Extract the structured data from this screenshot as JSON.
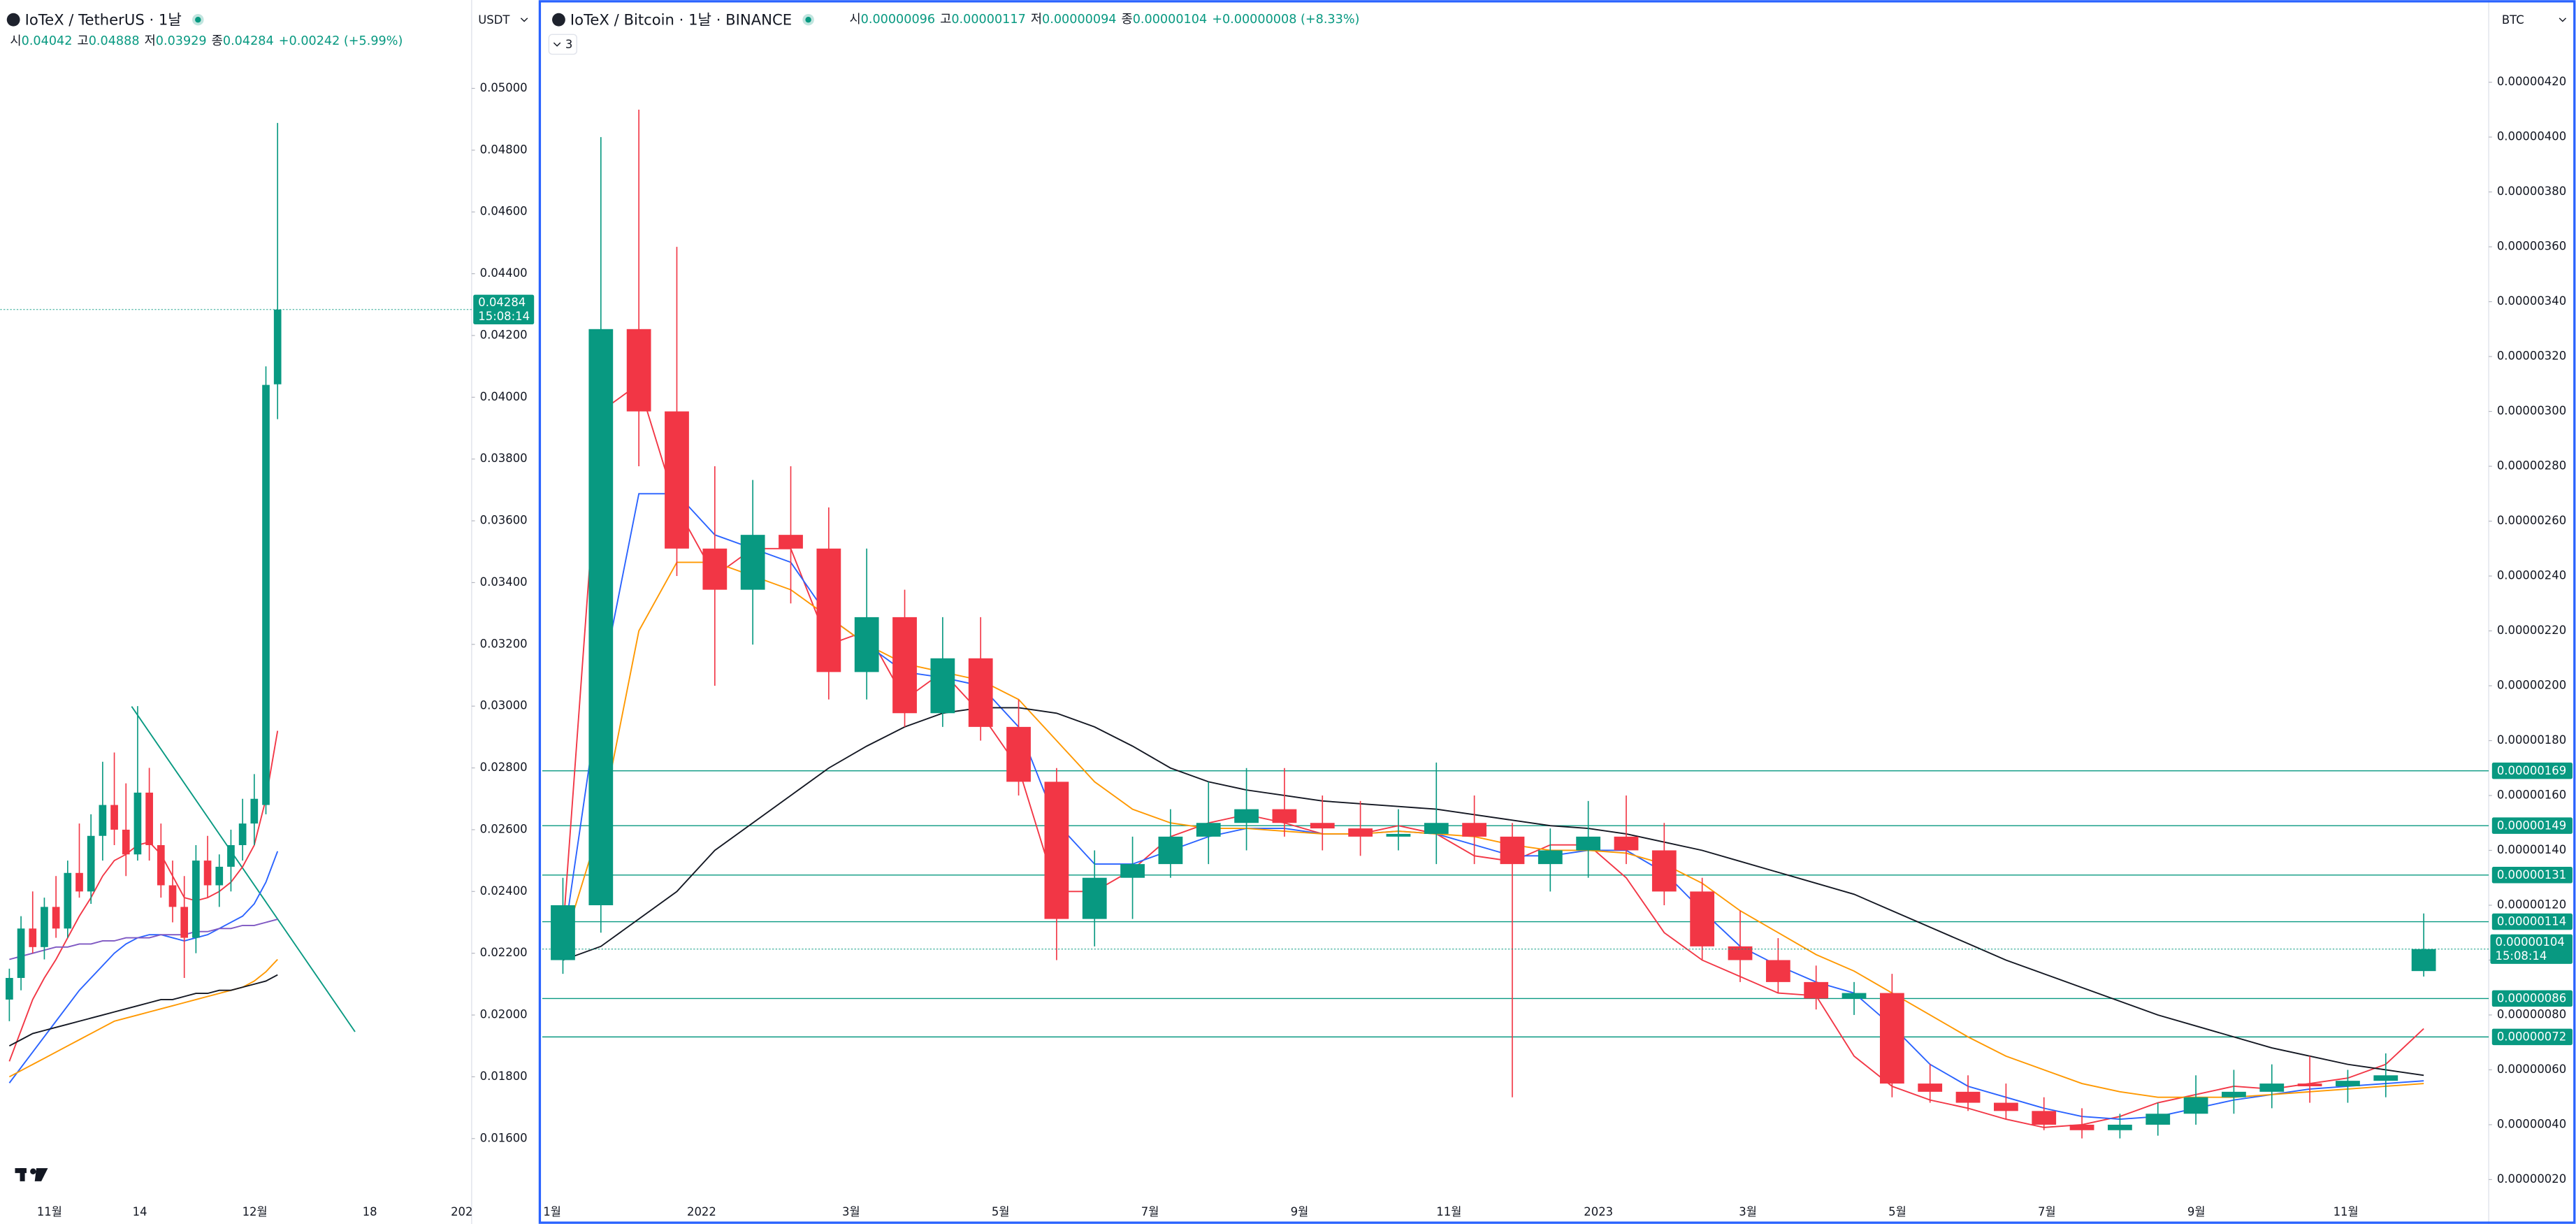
{
  "chart_data": [
    {
      "type": "candlestick",
      "title": "IoTeX / TetherUS · 1날",
      "currency": "USDT",
      "ohlc_header": [
        {
          "key": "시",
          "value": "0.04042"
        },
        {
          "key": "고",
          "value": "0.04888"
        },
        {
          "key": "저",
          "value": "0.03929"
        },
        {
          "key": "종",
          "value": "0.04284"
        }
      ],
      "change": "+0.00242 (+5.99%)",
      "ylim": [
        0.0135,
        0.051
      ],
      "yticks": [
        {
          "value": 0.05,
          "label": "0.05000"
        },
        {
          "value": 0.048,
          "label": "0.04800"
        },
        {
          "value": 0.046,
          "label": "0.04600"
        },
        {
          "value": 0.044,
          "label": "0.04400"
        },
        {
          "value": 0.042,
          "label": "0.04200"
        },
        {
          "value": 0.04,
          "label": "0.04000"
        },
        {
          "value": 0.038,
          "label": "0.03800"
        },
        {
          "value": 0.036,
          "label": "0.03600"
        },
        {
          "value": 0.034,
          "label": "0.03400"
        },
        {
          "value": 0.032,
          "label": "0.03200"
        },
        {
          "value": 0.03,
          "label": "0.03000"
        },
        {
          "value": 0.028,
          "label": "0.02800"
        },
        {
          "value": 0.026,
          "label": "0.02600"
        },
        {
          "value": 0.024,
          "label": "0.02400"
        },
        {
          "value": 0.022,
          "label": "0.02200"
        },
        {
          "value": 0.02,
          "label": "0.02000"
        },
        {
          "value": 0.018,
          "label": "0.01800"
        },
        {
          "value": 0.016,
          "label": "0.01600"
        }
      ],
      "xtick_labels": [
        "11월",
        "14",
        "12월",
        "18",
        "202"
      ],
      "up_color": "#089981",
      "down_color": "#f23645",
      "ohlc": [
        [
          0.0205,
          0.0215,
          0.0198,
          0.0212
        ],
        [
          0.0212,
          0.0232,
          0.0208,
          0.0228
        ],
        [
          0.0228,
          0.024,
          0.022,
          0.0222
        ],
        [
          0.0222,
          0.0238,
          0.0218,
          0.0235
        ],
        [
          0.0235,
          0.0245,
          0.0225,
          0.0228
        ],
        [
          0.0228,
          0.025,
          0.0225,
          0.0246
        ],
        [
          0.0246,
          0.0262,
          0.0238,
          0.024
        ],
        [
          0.024,
          0.0265,
          0.0236,
          0.0258
        ],
        [
          0.0258,
          0.0282,
          0.025,
          0.0268
        ],
        [
          0.0268,
          0.0285,
          0.0255,
          0.026
        ],
        [
          0.026,
          0.0275,
          0.0245,
          0.0252
        ],
        [
          0.0252,
          0.03,
          0.025,
          0.0272
        ],
        [
          0.0272,
          0.028,
          0.025,
          0.0255
        ],
        [
          0.0255,
          0.0262,
          0.0238,
          0.0242
        ],
        [
          0.0242,
          0.025,
          0.023,
          0.0235
        ],
        [
          0.0235,
          0.0245,
          0.0212,
          0.0225
        ],
        [
          0.0225,
          0.0255,
          0.022,
          0.025
        ],
        [
          0.025,
          0.0258,
          0.0238,
          0.0242
        ],
        [
          0.0242,
          0.0252,
          0.0235,
          0.0248
        ],
        [
          0.0248,
          0.026,
          0.024,
          0.0255
        ],
        [
          0.0255,
          0.027,
          0.025,
          0.0262
        ],
        [
          0.0262,
          0.0278,
          0.0255,
          0.027
        ],
        [
          0.0268,
          0.041,
          0.0265,
          0.0404
        ],
        [
          0.04042,
          0.04888,
          0.03929,
          0.04284
        ]
      ],
      "series": [
        {
          "color": "#f23645",
          "values": [
            0.0185,
            0.0195,
            0.0205,
            0.0212,
            0.0218,
            0.0225,
            0.0232,
            0.0238,
            0.0245,
            0.025,
            0.0252,
            0.0255,
            0.0256,
            0.0252,
            0.0245,
            0.0238,
            0.0237,
            0.0238,
            0.024,
            0.0243,
            0.0248,
            0.0255,
            0.027,
            0.0292
          ]
        },
        {
          "color": "#2962ff",
          "values": [
            0.0178,
            0.0183,
            0.0188,
            0.0193,
            0.0198,
            0.0203,
            0.0208,
            0.0212,
            0.0216,
            0.022,
            0.0223,
            0.0225,
            0.0226,
            0.0226,
            0.0225,
            0.0224,
            0.0225,
            0.0226,
            0.0228,
            0.023,
            0.0232,
            0.0236,
            0.0243,
            0.0253
          ]
        },
        {
          "color": "#7e57c2",
          "values": [
            0.0218,
            0.0219,
            0.022,
            0.0221,
            0.0222,
            0.0222,
            0.0223,
            0.0223,
            0.0224,
            0.0224,
            0.0225,
            0.0225,
            0.0225,
            0.0226,
            0.0226,
            0.0226,
            0.0227,
            0.0227,
            0.0228,
            0.0228,
            0.0229,
            0.0229,
            0.023,
            0.0231
          ]
        },
        {
          "color": "#ff9800",
          "values": [
            0.018,
            0.0182,
            0.0184,
            0.0186,
            0.0188,
            0.019,
            0.0192,
            0.0194,
            0.0196,
            0.0198,
            0.0199,
            0.02,
            0.0201,
            0.0202,
            0.0203,
            0.0204,
            0.0205,
            0.0206,
            0.0207,
            0.0208,
            0.0209,
            0.0211,
            0.0214,
            0.0218
          ]
        },
        {
          "color": "#131722",
          "values": [
            0.019,
            0.0192,
            0.0194,
            0.0195,
            0.0196,
            0.0197,
            0.0198,
            0.0199,
            0.02,
            0.0201,
            0.0202,
            0.0203,
            0.0204,
            0.0205,
            0.0205,
            0.0206,
            0.0207,
            0.0207,
            0.0208,
            0.0208,
            0.0209,
            0.021,
            0.0211,
            0.0213
          ]
        }
      ],
      "levels": [],
      "last_price": {
        "value": 0.04284,
        "label": "0.04284"
      },
      "countdown": "15:08:14"
    },
    {
      "type": "candlestick",
      "title": "IoTeX / Bitcoin · 1날 · BINANCE",
      "currency": "BTC",
      "indicators_count": "3",
      "ohlc_header": [
        {
          "key": "시",
          "value": "0.00000096"
        },
        {
          "key": "고",
          "value": "0.00000117"
        },
        {
          "key": "저",
          "value": "0.00000094"
        },
        {
          "key": "종",
          "value": "0.00000104"
        }
      ],
      "change": "+0.00000008 (+8.33%)",
      "ylim": [
        6.8e-08,
        4.29e-06
      ],
      "yticks": [
        {
          "value": 4.2e-06,
          "label": "0.00000420"
        },
        {
          "value": 4e-06,
          "label": "0.00000400"
        },
        {
          "value": 3.8e-06,
          "label": "0.00000380"
        },
        {
          "value": 3.6e-06,
          "label": "0.00000360"
        },
        {
          "value": 3.4e-06,
          "label": "0.00000340"
        },
        {
          "value": 3.2e-06,
          "label": "0.00000320"
        },
        {
          "value": 3e-06,
          "label": "0.00000300"
        },
        {
          "value": 2.8e-06,
          "label": "0.00000280"
        },
        {
          "value": 2.6e-06,
          "label": "0.00000260"
        },
        {
          "value": 2.4e-06,
          "label": "0.00000240"
        },
        {
          "value": 2.2e-06,
          "label": "0.00000220"
        },
        {
          "value": 2e-06,
          "label": "0.00000200"
        },
        {
          "value": 1.8e-06,
          "label": "0.00000180"
        },
        {
          "value": 1.6e-06,
          "label": "0.00000160"
        },
        {
          "value": 1.4e-06,
          "label": "0.00000140"
        },
        {
          "value": 1.2e-06,
          "label": "0.00000120"
        },
        {
          "value": 1e-06,
          "label": "0.00000100"
        },
        {
          "value": 8e-07,
          "label": "0.00000080"
        },
        {
          "value": 6e-07,
          "label": "0.00000060"
        },
        {
          "value": 4e-07,
          "label": "0.00000040"
        },
        {
          "value": 2e-07,
          "label": "0.00000020"
        }
      ],
      "xtick_labels": [
        "1월",
        "2022",
        "3월",
        "5월",
        "7월",
        "9월",
        "11월",
        "2023",
        "3월",
        "5월",
        "7월",
        "9월",
        "11월"
      ],
      "up_color": "#089981",
      "down_color": "#f23645",
      "ohlc": [
        [
          1e-06,
          1.3e-06,
          9.5e-07,
          1.2e-06
        ],
        [
          1.2e-06,
          4e-06,
          1.1e-06,
          3.3e-06
        ],
        [
          3.3e-06,
          4.1e-06,
          2.8e-06,
          3e-06
        ],
        [
          3e-06,
          3.6e-06,
          2.4e-06,
          2.5e-06
        ],
        [
          2.5e-06,
          2.8e-06,
          2e-06,
          2.35e-06
        ],
        [
          2.35e-06,
          2.75e-06,
          2.15e-06,
          2.55e-06
        ],
        [
          2.55e-06,
          2.8e-06,
          2.3e-06,
          2.5e-06
        ],
        [
          2.5e-06,
          2.65e-06,
          1.95e-06,
          2.05e-06
        ],
        [
          2.05e-06,
          2.5e-06,
          1.95e-06,
          2.25e-06
        ],
        [
          2.25e-06,
          2.35e-06,
          1.85e-06,
          1.9e-06
        ],
        [
          1.9e-06,
          2.25e-06,
          1.85e-06,
          2.1e-06
        ],
        [
          2.1e-06,
          2.25e-06,
          1.8e-06,
          1.85e-06
        ],
        [
          1.85e-06,
          1.95e-06,
          1.6e-06,
          1.65e-06
        ],
        [
          1.65e-06,
          1.7e-06,
          1e-06,
          1.15e-06
        ],
        [
          1.15e-06,
          1.4e-06,
          1.05e-06,
          1.3e-06
        ],
        [
          1.3e-06,
          1.45e-06,
          1.15e-06,
          1.35e-06
        ],
        [
          1.35e-06,
          1.55e-06,
          1.3e-06,
          1.45e-06
        ],
        [
          1.45e-06,
          1.65e-06,
          1.35e-06,
          1.5e-06
        ],
        [
          1.5e-06,
          1.7e-06,
          1.4e-06,
          1.55e-06
        ],
        [
          1.55e-06,
          1.7e-06,
          1.45e-06,
          1.5e-06
        ],
        [
          1.5e-06,
          1.6e-06,
          1.4e-06,
          1.48e-06
        ],
        [
          1.48e-06,
          1.58e-06,
          1.38e-06,
          1.45e-06
        ],
        [
          1.45e-06,
          1.55e-06,
          1.4e-06,
          1.46e-06
        ],
        [
          1.46e-06,
          1.72e-06,
          1.35e-06,
          1.5e-06
        ],
        [
          1.5e-06,
          1.6e-06,
          1.35e-06,
          1.45e-06
        ],
        [
          1.45e-06,
          1.5e-06,
          5e-07,
          1.35e-06
        ],
        [
          1.35e-06,
          1.48e-06,
          1.25e-06,
          1.4e-06
        ],
        [
          1.4e-06,
          1.58e-06,
          1.3e-06,
          1.45e-06
        ],
        [
          1.45e-06,
          1.6e-06,
          1.35e-06,
          1.4e-06
        ],
        [
          1.4e-06,
          1.5e-06,
          1.2e-06,
          1.25e-06
        ],
        [
          1.25e-06,
          1.3e-06,
          1e-06,
          1.05e-06
        ],
        [
          1.05e-06,
          1.18e-06,
          9.2e-07,
          1e-06
        ],
        [
          1e-06,
          1.08e-06,
          8.8e-07,
          9.2e-07
        ],
        [
          9.2e-07,
          9.8e-07,
          8.2e-07,
          8.6e-07
        ],
        [
          8.6e-07,
          9.2e-07,
          8e-07,
          8.8e-07
        ],
        [
          8.8e-07,
          9.5e-07,
          5e-07,
          5.5e-07
        ],
        [
          5.5e-07,
          6.2e-07,
          4.8e-07,
          5.2e-07
        ],
        [
          5.2e-07,
          5.8e-07,
          4.5e-07,
          4.8e-07
        ],
        [
          4.8e-07,
          5.5e-07,
          4.2e-07,
          4.5e-07
        ],
        [
          4.5e-07,
          5e-07,
          3.8e-07,
          4e-07
        ],
        [
          4e-07,
          4.6e-07,
          3.5e-07,
          3.8e-07
        ],
        [
          3.8e-07,
          4.4e-07,
          3.5e-07,
          4e-07
        ],
        [
          4e-07,
          4.8e-07,
          3.6e-07,
          4.4e-07
        ],
        [
          4.4e-07,
          5.8e-07,
          4e-07,
          5e-07
        ],
        [
          5e-07,
          6e-07,
          4.4e-07,
          5.2e-07
        ],
        [
          5.2e-07,
          6.2e-07,
          4.6e-07,
          5.5e-07
        ],
        [
          5.5e-07,
          6.5e-07,
          4.8e-07,
          5.4e-07
        ],
        [
          5.4e-07,
          6e-07,
          4.8e-07,
          5.6e-07
        ],
        [
          5.6e-07,
          6.6e-07,
          5e-07,
          5.8e-07
        ],
        [
          9.6e-07,
          1.17e-06,
          9.4e-07,
          1.04e-06
        ]
      ],
      "series": [
        {
          "color": "#f23645",
          "values": [
            1.1e-06,
            3e-06,
            3.1e-06,
            2.65e-06,
            2.4e-06,
            2.5e-06,
            2.5e-06,
            2.15e-06,
            2.2e-06,
            1.95e-06,
            2.05e-06,
            1.9e-06,
            1.7e-06,
            1.25e-06,
            1.25e-06,
            1.33e-06,
            1.45e-06,
            1.5e-06,
            1.53e-06,
            1.5e-06,
            1.46e-06,
            1.46e-06,
            1.49e-06,
            1.46e-06,
            1.38e-06,
            1.36e-06,
            1.42e-06,
            1.42e-06,
            1.3e-06,
            1.1e-06,
            1e-06,
            9.4e-07,
            8.8e-07,
            8.7e-07,
            6.5e-07,
            5.4e-07,
            4.9e-07,
            4.6e-07,
            4.2e-07,
            3.9e-07,
            4e-07,
            4.3e-07,
            4.8e-07,
            5.1e-07,
            5.4e-07,
            5.3e-07,
            5.5e-07,
            5.7e-07,
            6.2e-07,
            7.5e-07
          ]
        },
        {
          "color": "#2962ff",
          "values": [
            1.05e-06,
            2e-06,
            2.7e-06,
            2.7e-06,
            2.55e-06,
            2.5e-06,
            2.45e-06,
            2.25e-06,
            2.15e-06,
            2.05e-06,
            2.03e-06,
            2e-06,
            1.85e-06,
            1.5e-06,
            1.35e-06,
            1.35e-06,
            1.4e-06,
            1.45e-06,
            1.48e-06,
            1.48e-06,
            1.46e-06,
            1.46e-06,
            1.47e-06,
            1.46e-06,
            1.42e-06,
            1.38e-06,
            1.38e-06,
            1.4e-06,
            1.4e-06,
            1.32e-06,
            1.18e-06,
            1.05e-06,
            9.8e-07,
            9.2e-07,
            8.8e-07,
            7.6e-07,
            6.2e-07,
            5.4e-07,
            5e-07,
            4.6e-07,
            4.3e-07,
            4.2e-07,
            4.3e-07,
            4.6e-07,
            4.9e-07,
            5.1e-07,
            5.3e-07,
            5.4e-07,
            5.5e-07,
            5.6e-07
          ]
        },
        {
          "color": "#ff9800",
          "values": [
            1.05e-06,
            1.5e-06,
            2.2e-06,
            2.45e-06,
            2.45e-06,
            2.4e-06,
            2.35e-06,
            2.25e-06,
            2.15e-06,
            2.08e-06,
            2.05e-06,
            2.02e-06,
            1.95e-06,
            1.8e-06,
            1.65e-06,
            1.55e-06,
            1.5e-06,
            1.48e-06,
            1.48e-06,
            1.47e-06,
            1.46e-06,
            1.46e-06,
            1.47e-06,
            1.46e-06,
            1.45e-06,
            1.42e-06,
            1.4e-06,
            1.4e-06,
            1.39e-06,
            1.35e-06,
            1.28e-06,
            1.18e-06,
            1.1e-06,
            1.02e-06,
            9.6e-07,
            8.8e-07,
            8e-07,
            7.2e-07,
            6.5e-07,
            6e-07,
            5.5e-07,
            5.2e-07,
            5e-07,
            5e-07,
            5e-07,
            5.1e-07,
            5.2e-07,
            5.3e-07,
            5.4e-07,
            5.5e-07
          ]
        },
        {
          "color": "#131722",
          "values": [
            1e-06,
            1.05e-06,
            1.15e-06,
            1.25e-06,
            1.4e-06,
            1.5e-06,
            1.6e-06,
            1.7e-06,
            1.78e-06,
            1.85e-06,
            1.9e-06,
            1.92e-06,
            1.92e-06,
            1.9e-06,
            1.85e-06,
            1.78e-06,
            1.7e-06,
            1.65e-06,
            1.62e-06,
            1.6e-06,
            1.58e-06,
            1.57e-06,
            1.56e-06,
            1.55e-06,
            1.53e-06,
            1.51e-06,
            1.49e-06,
            1.48e-06,
            1.46e-06,
            1.43e-06,
            1.4e-06,
            1.36e-06,
            1.32e-06,
            1.28e-06,
            1.24e-06,
            1.18e-06,
            1.12e-06,
            1.06e-06,
            1e-06,
            9.5e-07,
            9e-07,
            8.5e-07,
            8e-07,
            7.6e-07,
            7.2e-07,
            6.8e-07,
            6.5e-07,
            6.2e-07,
            6e-07,
            5.8e-07
          ]
        }
      ],
      "levels": [
        {
          "value": 1.69e-06,
          "label": "0.00000169"
        },
        {
          "value": 1.49e-06,
          "label": "0.00000149"
        },
        {
          "value": 1.31e-06,
          "label": "0.00000131"
        },
        {
          "value": 1.14e-06,
          "label": "0.00000114"
        },
        {
          "value": 8.6e-07,
          "label": "0.00000086"
        },
        {
          "value": 7.2e-07,
          "label": "0.00000072"
        }
      ],
      "last_price": {
        "value": 1.04e-06,
        "label": "0.00000104"
      },
      "countdown": "15:08:14"
    }
  ]
}
